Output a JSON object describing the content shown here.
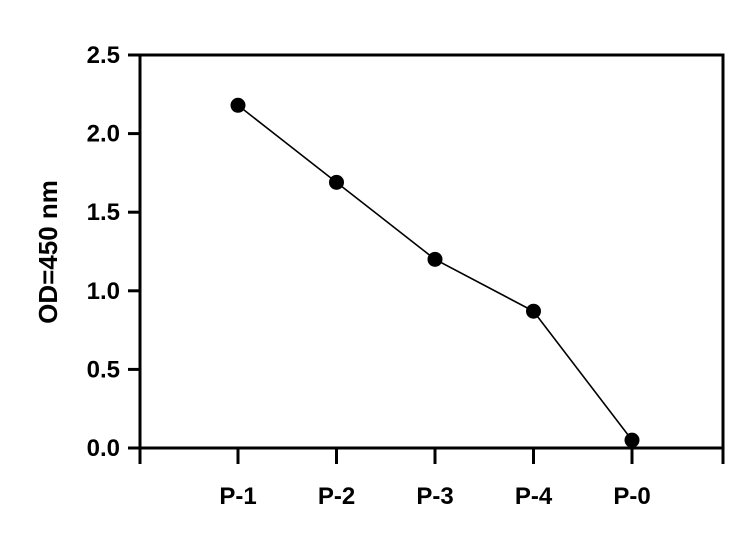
{
  "chart_data": {
    "type": "line",
    "title": "",
    "xlabel": "",
    "ylabel": "OD=450 nm",
    "categories": [
      "P-1",
      "P-2",
      "P-3",
      "P-4",
      "P-0"
    ],
    "series": [
      {
        "values": [
          2.18,
          1.69,
          1.2,
          0.87,
          0.05
        ]
      }
    ],
    "ylim": [
      0,
      2.5
    ],
    "yticks": [
      "0.0",
      "0.5",
      "1.0",
      "1.5",
      "2.0",
      "2.5"
    ],
    "grid": false,
    "legend": "none",
    "marker": "filled-circle",
    "line_color": "#000000",
    "marker_color": "#000000"
  }
}
